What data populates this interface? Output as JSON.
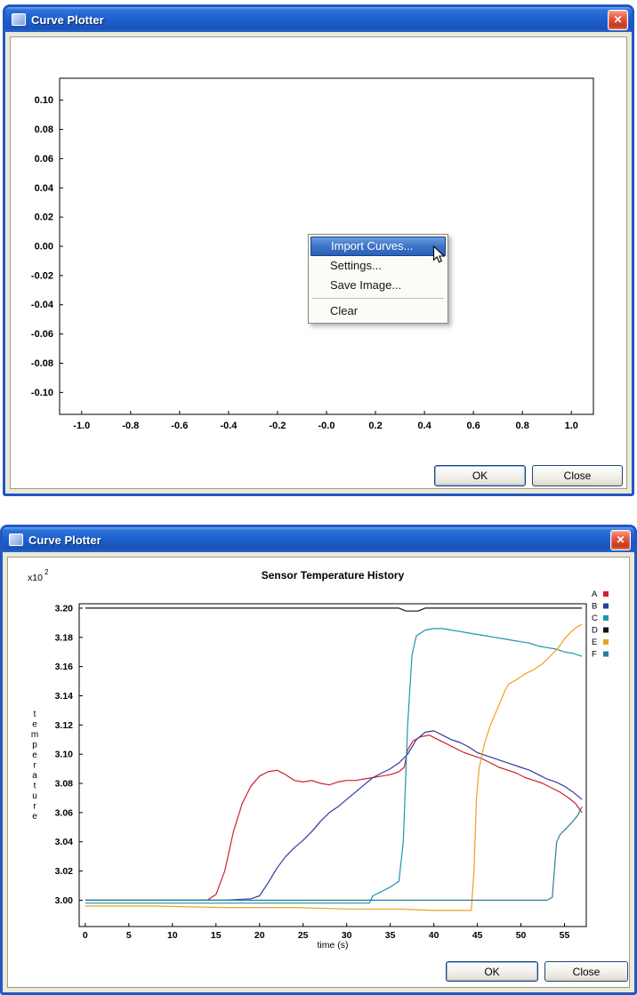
{
  "window_top": {
    "title": "Curve Plotter",
    "buttons": {
      "ok": "OK",
      "close": "Close"
    },
    "context_menu": {
      "items": [
        {
          "label": "Import Curves...",
          "highlighted": true
        },
        {
          "label": "Settings...",
          "highlighted": false
        },
        {
          "label": "Save Image...",
          "highlighted": false
        },
        {
          "label": "Clear",
          "highlighted": false,
          "separator_before": true
        }
      ]
    }
  },
  "window_bottom": {
    "title": "Curve Plotter",
    "buttons": {
      "ok": "OK",
      "close": "Close"
    }
  },
  "colors": {
    "window_border": "#2158c4",
    "titlebar_blue": "#1d60d0",
    "menu_highlight": "#3d74c8",
    "series_A": "#cf1f2e",
    "series_B": "#2c3e9e",
    "series_C": "#1898ae",
    "series_D": "#141414",
    "series_E": "#efa01e",
    "series_F": "#2e7e95"
  },
  "chart_data": [
    {
      "type": "line",
      "title": "",
      "xlabel": "",
      "ylabel": "",
      "xlim": [
        -1.09,
        1.09
      ],
      "ylim": [
        -0.115,
        0.115
      ],
      "grid": false,
      "legend_position": "none",
      "xticks": {
        "values": [
          -1.0,
          -0.8,
          -0.6,
          -0.4,
          -0.2,
          0.0,
          0.2,
          0.4,
          0.6,
          0.8,
          1.0
        ],
        "labels": [
          "-1.0",
          "-0.8",
          "-0.6",
          "-0.4",
          "-0.2",
          "-0.0",
          "0.2",
          "0.4",
          "0.6",
          "0.8",
          "1.0"
        ]
      },
      "yticks": {
        "values": [
          0.1,
          0.08,
          0.06,
          0.04,
          0.02,
          0.0,
          -0.02,
          -0.04,
          -0.06,
          -0.08,
          -0.1
        ],
        "labels": [
          "0.10",
          "0.08",
          "0.06",
          "0.04",
          "0.02",
          "0.00",
          "-0.02",
          "-0.04",
          "-0.06",
          "-0.08",
          "-0.10"
        ]
      },
      "series": []
    },
    {
      "type": "line",
      "title": "Sensor Temperature History",
      "xlabel": "time (s)",
      "ylabel": "temperature",
      "y_scale_label": {
        "prefix": "x10",
        "exponent": "2"
      },
      "xlim": [
        -0.7,
        57.5
      ],
      "ylim": [
        2.982,
        3.203
      ],
      "grid": false,
      "legend_position": "right",
      "xticks": {
        "values": [
          0,
          5,
          10,
          15,
          20,
          25,
          30,
          35,
          40,
          45,
          50,
          55
        ],
        "labels": [
          "0",
          "5",
          "10",
          "15",
          "20",
          "25",
          "30",
          "35",
          "40",
          "45",
          "50",
          "55"
        ]
      },
      "yticks": {
        "values": [
          3.0,
          3.02,
          3.04,
          3.06,
          3.08,
          3.1,
          3.12,
          3.14,
          3.16,
          3.18,
          3.2
        ],
        "labels": [
          "3.00",
          "3.02",
          "3.04",
          "3.06",
          "3.08",
          "3.10",
          "3.12",
          "3.14",
          "3.16",
          "3.18",
          "3.20"
        ]
      },
      "legend": [
        {
          "label": "A",
          "color": "#cf1f2e"
        },
        {
          "label": "B",
          "color": "#2c3e9e"
        },
        {
          "label": "C",
          "color": "#1898ae"
        },
        {
          "label": "D",
          "color": "#141414"
        },
        {
          "label": "E",
          "color": "#efa01e"
        },
        {
          "label": "F",
          "color": "#2e7e95"
        }
      ],
      "series": [
        {
          "name": "A",
          "color": "#cf1f2e",
          "points": [
            [
              0,
              3.0
            ],
            [
              6,
              3.0
            ],
            [
              12,
              3.0
            ],
            [
              14,
              3.0
            ],
            [
              15,
              3.004
            ],
            [
              16,
              3.02
            ],
            [
              17,
              3.047
            ],
            [
              18,
              3.066
            ],
            [
              19,
              3.078
            ],
            [
              20,
              3.085
            ],
            [
              21,
              3.088
            ],
            [
              22,
              3.089
            ],
            [
              23,
              3.086
            ],
            [
              24,
              3.082
            ],
            [
              25,
              3.081
            ],
            [
              26,
              3.082
            ],
            [
              27,
              3.08
            ],
            [
              28,
              3.079
            ],
            [
              29,
              3.081
            ],
            [
              30,
              3.082
            ],
            [
              31,
              3.082
            ],
            [
              32,
              3.083
            ],
            [
              33,
              3.084
            ],
            [
              34,
              3.085
            ],
            [
              35,
              3.086
            ],
            [
              36,
              3.088
            ],
            [
              36.6,
              3.091
            ],
            [
              37,
              3.103
            ],
            [
              37.6,
              3.109
            ],
            [
              38.5,
              3.112
            ],
            [
              39.5,
              3.113
            ],
            [
              40.5,
              3.11
            ],
            [
              41.5,
              3.107
            ],
            [
              42.5,
              3.104
            ],
            [
              43.5,
              3.101
            ],
            [
              44.5,
              3.099
            ],
            [
              45.5,
              3.097
            ],
            [
              46.5,
              3.094
            ],
            [
              47.5,
              3.091
            ],
            [
              48.5,
              3.089
            ],
            [
              49.5,
              3.087
            ],
            [
              50.5,
              3.084
            ],
            [
              51.5,
              3.082
            ],
            [
              52.5,
              3.08
            ],
            [
              53.5,
              3.077
            ],
            [
              54.5,
              3.074
            ],
            [
              55.5,
              3.07
            ],
            [
              56.3,
              3.066
            ],
            [
              57,
              3.06
            ]
          ]
        },
        {
          "name": "B",
          "color": "#2c3e9e",
          "points": [
            [
              0,
              3.0
            ],
            [
              8,
              3.0
            ],
            [
              16,
              3.0
            ],
            [
              19,
              3.001
            ],
            [
              20,
              3.003
            ],
            [
              21,
              3.012
            ],
            [
              22,
              3.022
            ],
            [
              23,
              3.03
            ],
            [
              24,
              3.036
            ],
            [
              25,
              3.041
            ],
            [
              26,
              3.047
            ],
            [
              27,
              3.054
            ],
            [
              28,
              3.06
            ],
            [
              29,
              3.064
            ],
            [
              30,
              3.069
            ],
            [
              31,
              3.074
            ],
            [
              32,
              3.079
            ],
            [
              33,
              3.084
            ],
            [
              34,
              3.087
            ],
            [
              35,
              3.09
            ],
            [
              36,
              3.094
            ],
            [
              37,
              3.1
            ],
            [
              38,
              3.11
            ],
            [
              39,
              3.115
            ],
            [
              40,
              3.116
            ],
            [
              41,
              3.113
            ],
            [
              42,
              3.11
            ],
            [
              43,
              3.108
            ],
            [
              44,
              3.105
            ],
            [
              45,
              3.101
            ],
            [
              46,
              3.099
            ],
            [
              47,
              3.097
            ],
            [
              48,
              3.095
            ],
            [
              49,
              3.093
            ],
            [
              50,
              3.091
            ],
            [
              51,
              3.089
            ],
            [
              52,
              3.086
            ],
            [
              53,
              3.083
            ],
            [
              54,
              3.081
            ],
            [
              55,
              3.078
            ],
            [
              56,
              3.074
            ],
            [
              57,
              3.069
            ]
          ]
        },
        {
          "name": "C",
          "color": "#1898ae",
          "points": [
            [
              0,
              2.998
            ],
            [
              10,
              2.998
            ],
            [
              20,
              2.998
            ],
            [
              30,
              2.998
            ],
            [
              32.6,
              2.998
            ],
            [
              33,
              3.003
            ],
            [
              34,
              3.006
            ],
            [
              35,
              3.009
            ],
            [
              36,
              3.013
            ],
            [
              36.5,
              3.04
            ],
            [
              37,
              3.12
            ],
            [
              37.5,
              3.168
            ],
            [
              38,
              3.181
            ],
            [
              39,
              3.185
            ],
            [
              40,
              3.186
            ],
            [
              41,
              3.186
            ],
            [
              42,
              3.185
            ],
            [
              43,
              3.184
            ],
            [
              44,
              3.183
            ],
            [
              45,
              3.182
            ],
            [
              46,
              3.181
            ],
            [
              47,
              3.18
            ],
            [
              48,
              3.179
            ],
            [
              49,
              3.178
            ],
            [
              50,
              3.177
            ],
            [
              51,
              3.176
            ],
            [
              52,
              3.174
            ],
            [
              53,
              3.173
            ],
            [
              54,
              3.172
            ],
            [
              55,
              3.17
            ],
            [
              56,
              3.169
            ],
            [
              57,
              3.167
            ]
          ]
        },
        {
          "name": "D",
          "color": "#141414",
          "points": [
            [
              0,
              3.2
            ],
            [
              20,
              3.2
            ],
            [
              36,
              3.2
            ],
            [
              36.8,
              3.198
            ],
            [
              38.2,
              3.198
            ],
            [
              39,
              3.2
            ],
            [
              57,
              3.2
            ]
          ]
        },
        {
          "name": "E",
          "color": "#efa01e",
          "points": [
            [
              0,
              2.996
            ],
            [
              8,
              2.996
            ],
            [
              16,
              2.995
            ],
            [
              24,
              2.995
            ],
            [
              30,
              2.994
            ],
            [
              36,
              2.994
            ],
            [
              40,
              2.993
            ],
            [
              44.3,
              2.993
            ],
            [
              44.6,
              3.02
            ],
            [
              44.9,
              3.07
            ],
            [
              45.2,
              3.09
            ],
            [
              45.8,
              3.107
            ],
            [
              46.5,
              3.12
            ],
            [
              47.5,
              3.134
            ],
            [
              48.2,
              3.144
            ],
            [
              48.6,
              3.148
            ],
            [
              49.5,
              3.151
            ],
            [
              50.5,
              3.155
            ],
            [
              51.5,
              3.158
            ],
            [
              52.5,
              3.162
            ],
            [
              53.5,
              3.168
            ],
            [
              54.3,
              3.173
            ],
            [
              55,
              3.179
            ],
            [
              55.8,
              3.184
            ],
            [
              56.4,
              3.187
            ],
            [
              57,
              3.189
            ]
          ]
        },
        {
          "name": "F",
          "color": "#2e7e95",
          "points": [
            [
              0,
              3.0
            ],
            [
              10,
              3.0
            ],
            [
              20,
              3.0
            ],
            [
              30,
              3.0
            ],
            [
              40,
              3.0
            ],
            [
              48,
              3.0
            ],
            [
              53,
              3.0
            ],
            [
              53.6,
              3.002
            ],
            [
              53.9,
              3.025
            ],
            [
              54.1,
              3.04
            ],
            [
              54.5,
              3.045
            ],
            [
              55,
              3.048
            ],
            [
              55.8,
              3.053
            ],
            [
              56.5,
              3.058
            ],
            [
              57,
              3.064
            ]
          ]
        }
      ]
    }
  ]
}
